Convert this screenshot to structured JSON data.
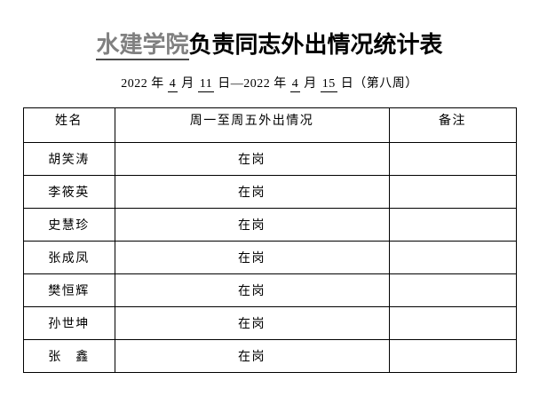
{
  "title": {
    "highlight": "水建学院",
    "rest": "负责同志外出情况统计表"
  },
  "subtitle": {
    "parts": [
      {
        "text": "2022 年 ",
        "underline": false
      },
      {
        "text": "4",
        "underline": true
      },
      {
        "text": " 月 ",
        "underline": false
      },
      {
        "text": "11",
        "underline": true
      },
      {
        "text": " 日—2022 年 ",
        "underline": false
      },
      {
        "text": "4",
        "underline": true
      },
      {
        "text": " 月 ",
        "underline": false
      },
      {
        "text": "15",
        "underline": true
      },
      {
        "text": " 日（第八周）",
        "underline": false
      }
    ]
  },
  "table": {
    "headers": [
      "姓名",
      "周一至周五外出情况",
      "备注"
    ],
    "rows": [
      {
        "name": "胡笑涛",
        "status": "在岗",
        "remark": ""
      },
      {
        "name": "李筱英",
        "status": "在岗",
        "remark": ""
      },
      {
        "name": "史慧珍",
        "status": "在岗",
        "remark": ""
      },
      {
        "name": "张成凤",
        "status": "在岗",
        "remark": ""
      },
      {
        "name": "樊恒辉",
        "status": "在岗",
        "remark": ""
      },
      {
        "name": "孙世坤",
        "status": "在岗",
        "remark": ""
      },
      {
        "name": "张　鑫",
        "status": "在岗",
        "remark": ""
      }
    ]
  },
  "colors": {
    "background": "#ffffff",
    "text": "#000000",
    "border": "#000000",
    "title_highlight": "#808080",
    "title_underline": "#4a4a4a"
  }
}
